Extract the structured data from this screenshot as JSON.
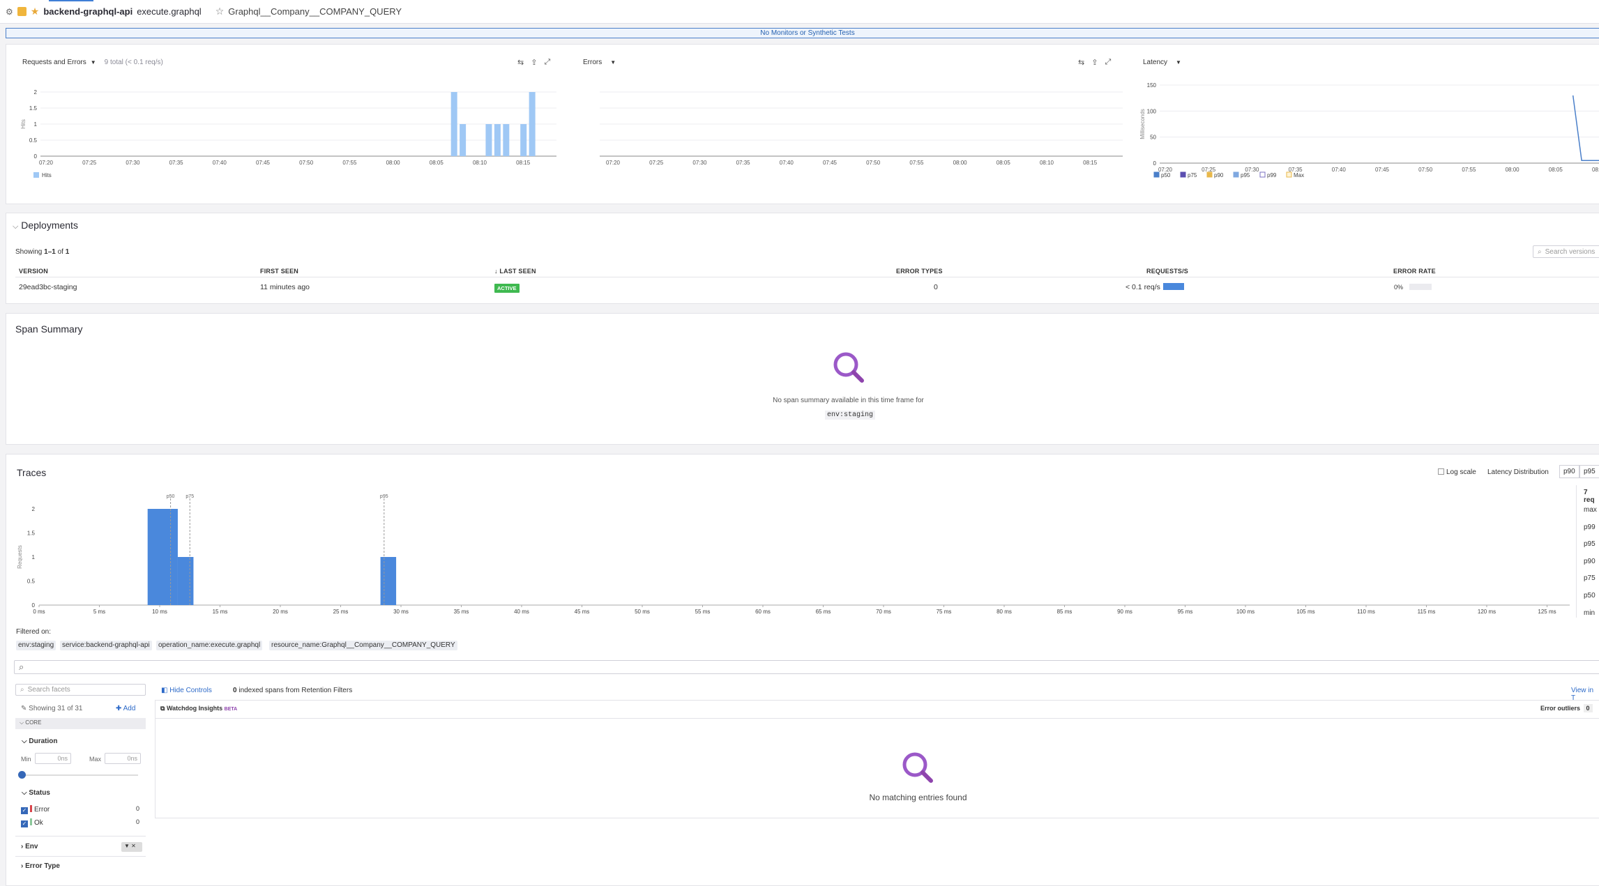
{
  "header": {
    "service": "backend-graphql-api",
    "operation": "execute.graphql",
    "resource": "Graphql__Company__COMPANY_QUERY"
  },
  "banner": "No Monitors or Synthetic Tests",
  "charts": {
    "requests": {
      "title": "Requests and Errors",
      "subtitle": "9 total (< 0.1 req/s)",
      "ylabel": "Hits",
      "legend": "Hits",
      "yticks": [
        "2",
        "1.5",
        "1",
        "0.5",
        "0"
      ]
    },
    "errors": {
      "title": "Errors"
    },
    "latency": {
      "title": "Latency",
      "ylabel": "Milliseconds",
      "yticks": [
        "150",
        "100",
        "50",
        "0"
      ],
      "legend": [
        {
          "name": "p50",
          "color": "#4a7fc9"
        },
        {
          "name": "p75",
          "color": "#5b4fb0"
        },
        {
          "name": "p90",
          "color": "#e8b84b"
        },
        {
          "name": "p95",
          "color": "#7fa8e0"
        },
        {
          "name": "p99",
          "color": "#ffffff"
        },
        {
          "name": "Max",
          "color": "#fff4d6"
        }
      ]
    },
    "xticks": [
      "07:20",
      "07:25",
      "07:30",
      "07:35",
      "07:40",
      "07:45",
      "07:50",
      "07:55",
      "08:00",
      "08:05",
      "08:10",
      "08:15"
    ]
  },
  "chart_data": [
    {
      "type": "bar",
      "title": "Requests and Errors",
      "ylabel": "Hits",
      "series": [
        {
          "name": "Hits",
          "x": [
            "08:07",
            "08:08",
            "08:11",
            "08:12",
            "08:13",
            "08:15",
            "08:16"
          ],
          "values": [
            2,
            1,
            1,
            1,
            1,
            1,
            2
          ]
        }
      ],
      "ylim": [
        0,
        2
      ]
    },
    {
      "type": "line",
      "title": "Latency",
      "ylabel": "Milliseconds",
      "ylim": [
        0,
        150
      ],
      "series": [
        {
          "name": "p50",
          "x": [
            "08:07",
            "08:08"
          ],
          "values": [
            130,
            5
          ]
        }
      ]
    },
    {
      "type": "bar",
      "title": "Traces",
      "ylabel": "Requests",
      "x": [
        "10 ms",
        "12 ms",
        "29 ms"
      ],
      "values": [
        2,
        1,
        1
      ],
      "ylim": [
        0,
        2
      ],
      "markers": {
        "p50": 10.9,
        "p75": 12.5,
        "p95": 28.6
      }
    }
  ],
  "deployments": {
    "title": "Deployments",
    "showing_prefix": "Showing ",
    "showing_range": "1–1",
    "showing_suffix": " of ",
    "showing_total": "1",
    "search_placeholder": "Search versions",
    "columns": [
      "VERSION",
      "FIRST SEEN",
      "LAST SEEN",
      "ERROR TYPES",
      "REQUESTS/S",
      "ERROR RATE"
    ],
    "row": {
      "version": "29ead3bc-staging",
      "first_seen": "11 minutes ago",
      "status": "ACTIVE",
      "error_types": "0",
      "requests": "< 0.1 req/s",
      "error_rate": "0%"
    }
  },
  "span_summary": {
    "title": "Span Summary",
    "empty": "No span summary available in this time frame for",
    "env": "env:staging"
  },
  "traces": {
    "title": "Traces",
    "log_scale": "Log scale",
    "latency_dist": "Latency Distribution",
    "p90": "p90",
    "p95": "p95",
    "reqs": "7 req",
    "stats": [
      "max",
      "p99",
      "p95",
      "p90",
      "p75",
      "p50",
      "min"
    ],
    "ylabel": "Requests",
    "yticks": [
      "2",
      "1.5",
      "1",
      "0.5",
      "0"
    ],
    "xticks": [
      "0 ms",
      "5 ms",
      "10 ms",
      "15 ms",
      "20 ms",
      "25 ms",
      "30 ms",
      "35 ms",
      "40 ms",
      "45 ms",
      "50 ms",
      "55 ms",
      "60 ms",
      "65 ms",
      "70 ms",
      "75 ms",
      "80 ms",
      "85 ms",
      "90 ms",
      "95 ms",
      "100 ms",
      "105 ms",
      "110 ms",
      "115 ms",
      "120 ms",
      "125 ms"
    ],
    "markers": [
      "p50",
      "p75",
      "p95"
    ],
    "filtered_on": "Filtered on:",
    "chips": [
      "env:staging",
      "service:backend-graphql-api",
      "operation_name:execute.graphql",
      "resource_name:Graphql__Company__COMPANY_QUERY"
    ]
  },
  "facets": {
    "search_placeholder": "Search facets",
    "showing": "Showing 31 of 31",
    "add": "Add",
    "core": "CORE",
    "duration": "Duration",
    "min_label": "Min",
    "max_label": "Max",
    "min_val": "0ns",
    "max_val": "0ns",
    "status": "Status",
    "error": "Error",
    "error_count": "0",
    "ok": "Ok",
    "ok_count": "0",
    "env": "Env",
    "error_type": "Error Type"
  },
  "list": {
    "hide_controls": "Hide Controls",
    "indexed_count": "0",
    "indexed_text": " indexed spans from Retention Filters",
    "view_in": "View in T",
    "watchdog": "Watchdog Insights",
    "beta": "BETA",
    "outliers": "Error outliers",
    "outliers_count": "0",
    "empty": "No matching entries found"
  }
}
